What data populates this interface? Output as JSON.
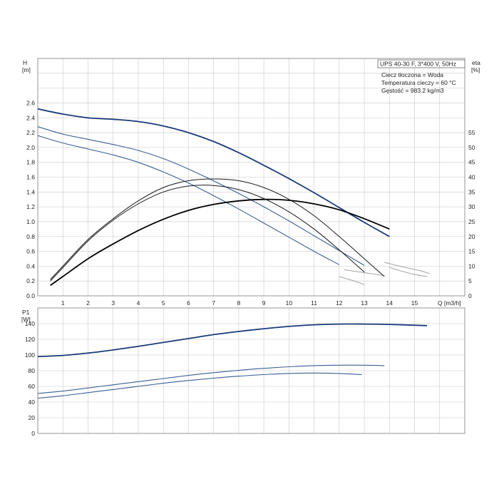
{
  "chart_data": [
    {
      "type": "line",
      "id": "head-efficiency",
      "title": "UPS 40-30 F, 3*400 V, 50Hz",
      "annotations": [
        "Ciecz tłoczona = Woda",
        "Temperatura cieczy = 60 °C",
        "Gęstość = 983.2 kg/m3"
      ],
      "xlabel": "Q [m3/h]",
      "ylabel_top": "H",
      "ylabel_bottom": "[m]",
      "y2label_top": "eta",
      "y2label_bottom": "[%]",
      "xlim": [
        0,
        17
      ],
      "ylim": [
        0,
        3.2
      ],
      "y2lim": [
        0,
        80
      ],
      "x_ticks": [
        1,
        2,
        3,
        4,
        5,
        6,
        7,
        8,
        9,
        10,
        11,
        12,
        13,
        14,
        15
      ],
      "y_ticks": [
        "0.0",
        "0.2",
        "0.4",
        "0.6",
        "0.8",
        "1.0",
        "1.2",
        "1.4",
        "1.6",
        "1.8",
        "2.0",
        "2.2",
        "2.4",
        "2.6"
      ],
      "y2_ticks": [
        "0",
        "5",
        "10",
        "15",
        "20",
        "25",
        "30",
        "35",
        "40",
        "45",
        "50",
        "55"
      ],
      "grid": true,
      "head_curves": [
        {
          "x": [
            0,
            1,
            2,
            3,
            4,
            5,
            6,
            7,
            8,
            9,
            10,
            11,
            12,
            13,
            14
          ],
          "y": [
            2.52,
            2.45,
            2.4,
            2.38,
            2.35,
            2.29,
            2.2,
            2.08,
            1.93,
            1.76,
            1.58,
            1.39,
            1.19,
            0.99,
            0.8
          ],
          "color": "#1a3b7a",
          "width": 1.8
        },
        {
          "x": [
            0,
            1,
            2,
            3,
            4,
            5,
            6,
            7,
            8,
            9,
            10,
            11,
            12,
            13
          ],
          "y": [
            2.28,
            2.18,
            2.11,
            2.04,
            1.96,
            1.85,
            1.71,
            1.55,
            1.38,
            1.2,
            1.01,
            0.81,
            0.61,
            0.41
          ],
          "color": "#3a5e96",
          "width": 1.1
        },
        {
          "x": [
            0,
            1,
            2,
            3,
            4,
            5,
            6,
            7,
            8,
            9,
            10,
            11,
            12
          ],
          "y": [
            2.16,
            2.06,
            1.98,
            1.9,
            1.8,
            1.67,
            1.52,
            1.35,
            1.17,
            0.98,
            0.79,
            0.6,
            0.42
          ],
          "color": "#3a5e96",
          "width": 1.1
        }
      ],
      "efficiency_curves": [
        {
          "x": [
            0.5,
            1,
            2,
            3,
            4,
            5,
            6,
            7,
            8,
            9,
            10,
            11,
            12,
            13,
            14
          ],
          "y": [
            3.5,
            6.5,
            12.5,
            17.5,
            22,
            25.8,
            28.8,
            30.8,
            32,
            32.5,
            32.2,
            31,
            29,
            26,
            22.5
          ],
          "color": "#000000",
          "width": 1.8
        },
        {
          "x": [
            0.5,
            1,
            2,
            3,
            4,
            5,
            6,
            7,
            8,
            9,
            10,
            11,
            12,
            13,
            13.8
          ],
          "y": [
            5.5,
            10,
            19,
            26,
            32,
            36.5,
            38.8,
            39.4,
            38.8,
            36.5,
            32.5,
            27,
            20,
            12.5,
            6.5
          ],
          "color": "#1a1a1a",
          "width": 1.0
        },
        {
          "x": [
            0.5,
            1,
            2,
            3,
            4,
            5,
            6,
            7,
            8,
            9,
            10,
            11,
            12,
            13
          ],
          "y": [
            5,
            9.5,
            18.5,
            25.5,
            31,
            35,
            37,
            37.2,
            35.8,
            32.8,
            28.3,
            22.5,
            15.5,
            8
          ],
          "color": "#1a1a1a",
          "width": 1.0
        }
      ],
      "tails": [
        {
          "x": [
            14,
            14.5,
            15,
            15.5
          ],
          "y": [
            9.6,
            8.3,
            7.2,
            6.5
          ],
          "color": "#999999"
        },
        {
          "x": [
            13.8,
            14.5,
            15.2,
            15.6
          ],
          "y": [
            11.3,
            9.8,
            8.5,
            7.5
          ],
          "color": "#999999"
        },
        {
          "x": [
            12.2,
            13,
            13.8
          ],
          "y": [
            8.8,
            7.8,
            6.8
          ],
          "color": "#999999"
        },
        {
          "x": [
            12,
            12.6,
            13
          ],
          "y": [
            6.5,
            5.0,
            3.8
          ],
          "color": "#999999"
        }
      ]
    },
    {
      "type": "line",
      "id": "power",
      "ylabel_top": "P1",
      "ylabel_bottom": "[W]",
      "xlim": [
        0,
        17
      ],
      "ylim": [
        0,
        160
      ],
      "y_ticks": [
        "0",
        "20",
        "40",
        "60",
        "80",
        "100",
        "120",
        "140"
      ],
      "grid": true,
      "series": [
        {
          "x": [
            0,
            1,
            2,
            3,
            4,
            5,
            6,
            7,
            8,
            9,
            10,
            11,
            12,
            13,
            14,
            15.5
          ],
          "y": [
            98,
            99.5,
            102.5,
            106.5,
            111,
            116,
            121,
            126,
            130,
            133.5,
            136.5,
            138.5,
            139.5,
            139.5,
            139,
            137.5
          ],
          "color": "#1a3b7a",
          "width": 1.8
        },
        {
          "x": [
            0,
            1,
            2,
            3,
            4,
            5,
            6,
            7,
            8,
            9,
            10,
            11,
            12,
            13,
            13.8
          ],
          "y": [
            51,
            54,
            58,
            62,
            66,
            70,
            74,
            77.5,
            80.5,
            83,
            85,
            86.5,
            87,
            87,
            86.5
          ],
          "color": "#3a5e96",
          "width": 1.1
        },
        {
          "x": [
            0,
            1,
            2,
            3,
            4,
            5,
            6,
            7,
            8,
            9,
            10,
            11,
            12,
            12.9
          ],
          "y": [
            45,
            48,
            52,
            56,
            60,
            64,
            67.5,
            70.5,
            73,
            75,
            76.5,
            77,
            76.5,
            75
          ],
          "color": "#3a5e96",
          "width": 1.1
        }
      ]
    }
  ],
  "colors": {
    "grid": "#c8c8c8",
    "frame": "#8a8a8a",
    "tail": "#999999"
  }
}
